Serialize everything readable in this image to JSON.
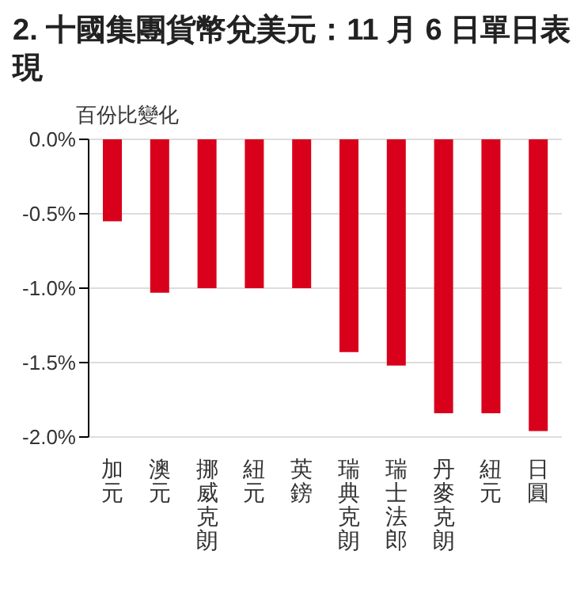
{
  "chart_data": {
    "type": "bar",
    "title": "2. 十國集團貨幣兌美元：11 月 6 日單日表現",
    "ylabel": "百份比變化",
    "categories": [
      "加元",
      "澳元",
      "挪威克朗",
      "紐元",
      "英鎊",
      "瑞典克朗",
      "瑞士法郎",
      "丹麥克朗",
      "紐元",
      "日圓"
    ],
    "values": [
      -0.55,
      -1.03,
      -1.0,
      -1.0,
      -1.0,
      -1.43,
      -1.52,
      -1.84,
      -1.84,
      -1.96
    ],
    "color": "#d9001b",
    "ylim": [
      -2,
      0
    ],
    "yticks": [
      {
        "value": -2,
        "label": "-2.0%"
      },
      {
        "value": -1.5,
        "label": "-1.5%"
      },
      {
        "value": -1,
        "label": "-1.0%"
      },
      {
        "value": -0.5,
        "label": "-0.5%"
      },
      {
        "value": 0,
        "label": "0.0%"
      }
    ],
    "grid": "y"
  }
}
